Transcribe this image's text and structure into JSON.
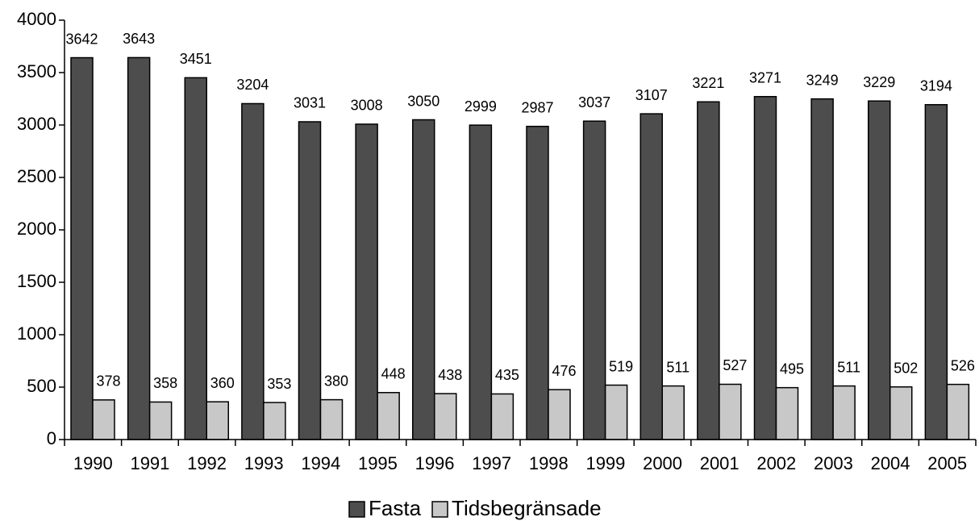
{
  "chart_data": {
    "type": "bar",
    "categories": [
      "1990",
      "1991",
      "1992",
      "1993",
      "1994",
      "1995",
      "1996",
      "1997",
      "1998",
      "1999",
      "2000",
      "2001",
      "2002",
      "2003",
      "2004",
      "2005"
    ],
    "series": [
      {
        "name": "Fasta",
        "color": "#4d4d4d",
        "values": [
          3642,
          3643,
          3451,
          3204,
          3031,
          3008,
          3050,
          2999,
          2987,
          3037,
          3107,
          3221,
          3271,
          3249,
          3229,
          3194
        ]
      },
      {
        "name": "Tidsbegränsade",
        "color": "#c8c8c8",
        "values": [
          378,
          358,
          360,
          353,
          380,
          448,
          438,
          435,
          476,
          519,
          511,
          527,
          495,
          511,
          502,
          526
        ]
      }
    ],
    "ylim": [
      0,
      4000
    ],
    "yticks": [
      0,
      500,
      1000,
      1500,
      2000,
      2500,
      3000,
      3500,
      4000
    ],
    "grid": false,
    "legend": "bottom"
  }
}
